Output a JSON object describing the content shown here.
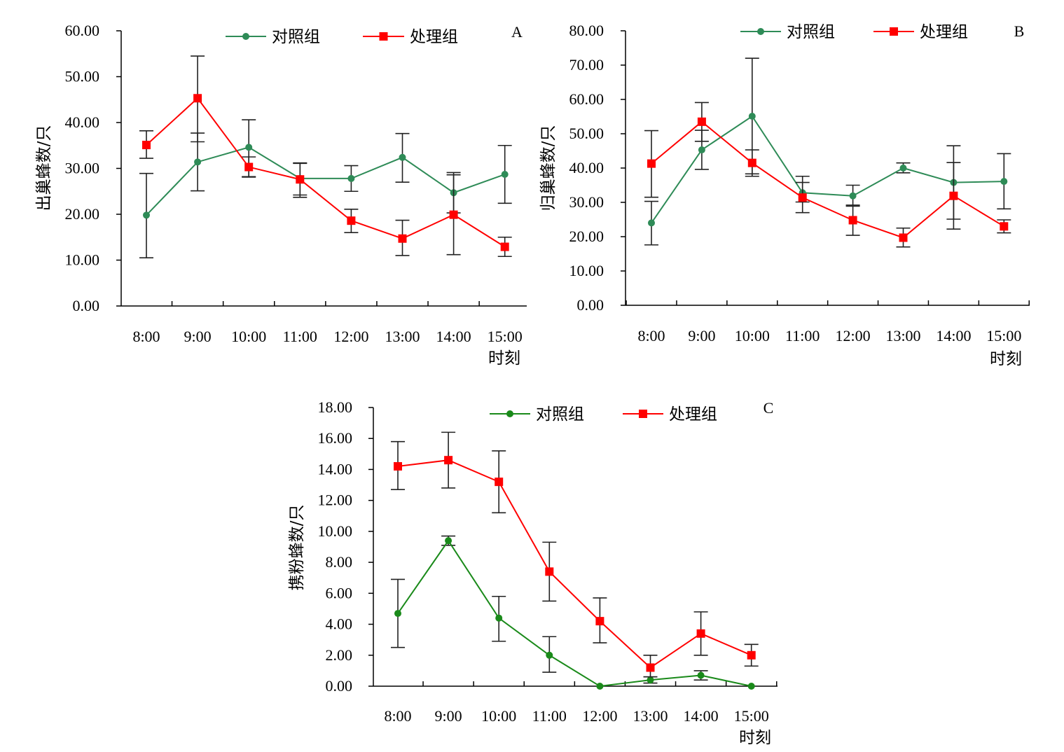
{
  "chart_data": [
    {
      "panel": "A",
      "type": "line",
      "ylabel": "出巢蜂数/只",
      "xlabel": "时刻",
      "x": [
        "8:00",
        "9:00",
        "10:00",
        "11:00",
        "12:00",
        "13:00",
        "14:00",
        "15:00"
      ],
      "ylim": [
        0,
        60
      ],
      "ytick_labels": [
        "0.00",
        "10.00",
        "20.00",
        "30.00",
        "40.00",
        "50.00",
        "60.00"
      ],
      "legend_position": "top",
      "series": [
        {
          "name": "对照组",
          "color": "#2e8b57",
          "marker": "circle",
          "values": [
            19.8,
            31.4,
            34.6,
            27.8,
            27.8,
            32.4,
            24.7,
            28.7
          ],
          "err_low": [
            10.5,
            25.1,
            28.2,
            24.2,
            25.0,
            27.0,
            20.3,
            22.4
          ],
          "err_high": [
            28.9,
            37.7,
            40.6,
            31.2,
            30.6,
            37.6,
            29.1,
            35.0
          ]
        },
        {
          "name": "处理组",
          "color": "#ff0000",
          "marker": "square",
          "values": [
            35.1,
            45.3,
            30.3,
            27.6,
            18.6,
            14.7,
            19.9,
            12.9
          ],
          "err_low": [
            32.2,
            35.8,
            28.1,
            23.7,
            16.0,
            11.0,
            11.2,
            10.8
          ],
          "err_high": [
            38.2,
            54.5,
            32.5,
            31.1,
            21.1,
            18.7,
            28.6,
            15.0
          ]
        }
      ]
    },
    {
      "panel": "B",
      "type": "line",
      "ylabel": "归巢蜂数/只",
      "xlabel": "时刻",
      "x": [
        "8:00",
        "9:00",
        "10:00",
        "11:00",
        "12:00",
        "13:00",
        "14:00",
        "15:00"
      ],
      "ylim": [
        0,
        80
      ],
      "ytick_labels": [
        "0.00",
        "10.00",
        "20.00",
        "30.00",
        "40.00",
        "50.00",
        "60.00",
        "70.00",
        "80.00"
      ],
      "legend_position": "top",
      "series": [
        {
          "name": "对照组",
          "color": "#2e8b57",
          "marker": "circle",
          "values": [
            24.0,
            45.3,
            55.1,
            32.8,
            31.9,
            40.0,
            35.8,
            36.1
          ],
          "err_low": [
            17.6,
            39.6,
            38.3,
            30.1,
            28.9,
            38.6,
            25.1,
            28.1
          ],
          "err_high": [
            30.3,
            51.0,
            72.0,
            37.6,
            35.0,
            41.5,
            46.5,
            44.2
          ]
        },
        {
          "name": "处理组",
          "color": "#ff0000",
          "marker": "square",
          "values": [
            41.3,
            53.5,
            41.5,
            31.4,
            24.8,
            19.7,
            31.9,
            23.0
          ],
          "err_low": [
            31.5,
            47.8,
            37.6,
            27.0,
            20.4,
            17.0,
            22.2,
            21.1
          ],
          "err_high": [
            50.9,
            59.1,
            45.3,
            35.8,
            29.2,
            22.5,
            41.6,
            24.9
          ]
        }
      ]
    },
    {
      "panel": "C",
      "type": "line",
      "ylabel": "携粉蜂数/只",
      "xlabel": "时刻",
      "x": [
        "8:00",
        "9:00",
        "10:00",
        "11:00",
        "12:00",
        "13:00",
        "14:00",
        "15:00"
      ],
      "ylim": [
        0,
        18
      ],
      "ytick_labels": [
        "0.00",
        "2.00",
        "4.00",
        "6.00",
        "8.00",
        "10.00",
        "12.00",
        "14.00",
        "16.00",
        "18.00"
      ],
      "legend_position": "top",
      "series": [
        {
          "name": "对照组",
          "color": "#1a8a1a",
          "marker": "circle",
          "values": [
            4.7,
            9.4,
            4.4,
            2.0,
            0.0,
            0.4,
            0.7,
            0.0
          ],
          "err_low": [
            2.5,
            9.1,
            2.9,
            0.9,
            0.0,
            0.2,
            0.4,
            0.0
          ],
          "err_high": [
            6.9,
            9.7,
            5.8,
            3.2,
            0.0,
            0.6,
            1.0,
            0.0
          ]
        },
        {
          "name": "处理组",
          "color": "#ff0000",
          "marker": "square",
          "values": [
            14.2,
            14.6,
            13.2,
            7.4,
            4.2,
            1.2,
            3.4,
            2.0
          ],
          "err_low": [
            12.7,
            12.8,
            11.2,
            5.5,
            2.8,
            0.6,
            2.0,
            1.3
          ],
          "err_high": [
            15.8,
            16.4,
            15.2,
            9.3,
            5.7,
            2.0,
            4.8,
            2.7
          ]
        }
      ]
    }
  ]
}
